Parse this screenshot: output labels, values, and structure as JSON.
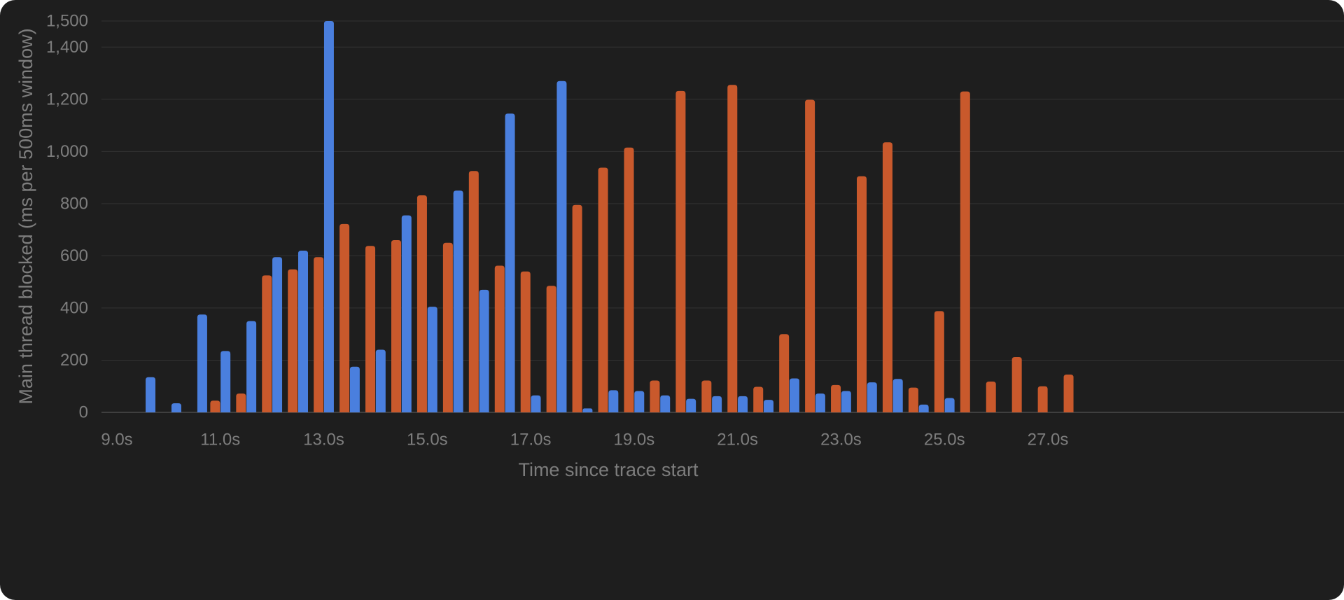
{
  "colors": {
    "background": "#1e1e1e",
    "grid": "#333333",
    "baseline": "#4a4a4a",
    "text": "#7d7d7d",
    "blue": "#4a7fde",
    "orange": "#c9592c"
  },
  "chart_data": {
    "type": "bar",
    "title": "",
    "xlabel": "Time since trace start",
    "ylabel": "Main thread blocked (ms per 500ms window)",
    "xlim": [
      8.85,
      27.65
    ],
    "ylim": [
      0,
      1500
    ],
    "grid": true,
    "legend": "none",
    "x_ticks": [
      {
        "value": 9,
        "label": "9.0s"
      },
      {
        "value": 11,
        "label": "11.0s"
      },
      {
        "value": 13,
        "label": "13.0s"
      },
      {
        "value": 15,
        "label": "15.0s"
      },
      {
        "value": 17,
        "label": "17.0s"
      },
      {
        "value": 19,
        "label": "19.0s"
      },
      {
        "value": 21,
        "label": "21.0s"
      },
      {
        "value": 23,
        "label": "23.0s"
      },
      {
        "value": 25,
        "label": "25.0s"
      },
      {
        "value": 27,
        "label": "27.0s"
      }
    ],
    "y_ticks": [
      {
        "value": 0,
        "label": "0"
      },
      {
        "value": 200,
        "label": "200"
      },
      {
        "value": 400,
        "label": "400"
      },
      {
        "value": 600,
        "label": "600"
      },
      {
        "value": 800,
        "label": "800"
      },
      {
        "value": 1000,
        "label": "1,000"
      },
      {
        "value": 1200,
        "label": "1,200"
      },
      {
        "value": 1400,
        "label": "1,400"
      },
      {
        "value": 1500,
        "label": "1,500"
      }
    ],
    "series": [
      {
        "color": "#4a7fde",
        "points": [
          {
            "x": 9.65,
            "y": 135
          },
          {
            "x": 10.15,
            "y": 35
          },
          {
            "x": 10.65,
            "y": 375
          },
          {
            "x": 11.1,
            "y": 235
          },
          {
            "x": 11.6,
            "y": 350
          },
          {
            "x": 12.1,
            "y": 595
          },
          {
            "x": 12.6,
            "y": 620
          },
          {
            "x": 13.1,
            "y": 1500
          },
          {
            "x": 13.6,
            "y": 175
          },
          {
            "x": 14.1,
            "y": 240
          },
          {
            "x": 14.6,
            "y": 755
          },
          {
            "x": 15.1,
            "y": 405
          },
          {
            "x": 15.6,
            "y": 850
          },
          {
            "x": 16.1,
            "y": 470
          },
          {
            "x": 16.6,
            "y": 1145
          },
          {
            "x": 17.1,
            "y": 65
          },
          {
            "x": 17.6,
            "y": 1270
          },
          {
            "x": 18.1,
            "y": 15
          },
          {
            "x": 18.6,
            "y": 85
          },
          {
            "x": 19.1,
            "y": 82
          },
          {
            "x": 19.6,
            "y": 65
          },
          {
            "x": 20.1,
            "y": 52
          },
          {
            "x": 20.6,
            "y": 62
          },
          {
            "x": 21.1,
            "y": 62
          },
          {
            "x": 21.6,
            "y": 48
          },
          {
            "x": 22.1,
            "y": 130
          },
          {
            "x": 22.6,
            "y": 72
          },
          {
            "x": 23.1,
            "y": 82
          },
          {
            "x": 23.6,
            "y": 115
          },
          {
            "x": 24.1,
            "y": 128
          },
          {
            "x": 24.6,
            "y": 30
          },
          {
            "x": 25.1,
            "y": 55
          }
        ]
      },
      {
        "color": "#c9592c",
        "points": [
          {
            "x": 10.9,
            "y": 45
          },
          {
            "x": 11.4,
            "y": 72
          },
          {
            "x": 11.9,
            "y": 525
          },
          {
            "x": 12.4,
            "y": 548
          },
          {
            "x": 12.9,
            "y": 595
          },
          {
            "x": 13.4,
            "y": 722
          },
          {
            "x": 13.9,
            "y": 638
          },
          {
            "x": 14.4,
            "y": 660
          },
          {
            "x": 14.9,
            "y": 832
          },
          {
            "x": 15.4,
            "y": 650
          },
          {
            "x": 15.9,
            "y": 925
          },
          {
            "x": 16.4,
            "y": 562
          },
          {
            "x": 16.9,
            "y": 540
          },
          {
            "x": 17.4,
            "y": 485
          },
          {
            "x": 17.9,
            "y": 795
          },
          {
            "x": 18.4,
            "y": 938
          },
          {
            "x": 18.9,
            "y": 1015
          },
          {
            "x": 19.4,
            "y": 122
          },
          {
            "x": 19.9,
            "y": 1232
          },
          {
            "x": 20.4,
            "y": 122
          },
          {
            "x": 20.9,
            "y": 1255
          },
          {
            "x": 21.4,
            "y": 98
          },
          {
            "x": 21.9,
            "y": 300
          },
          {
            "x": 22.4,
            "y": 1198
          },
          {
            "x": 22.9,
            "y": 105
          },
          {
            "x": 23.4,
            "y": 905
          },
          {
            "x": 23.9,
            "y": 1035
          },
          {
            "x": 24.4,
            "y": 95
          },
          {
            "x": 24.9,
            "y": 388
          },
          {
            "x": 25.4,
            "y": 1230
          },
          {
            "x": 25.9,
            "y": 118
          },
          {
            "x": 26.4,
            "y": 212
          },
          {
            "x": 26.9,
            "y": 100
          },
          {
            "x": 27.4,
            "y": 145
          }
        ]
      }
    ]
  }
}
